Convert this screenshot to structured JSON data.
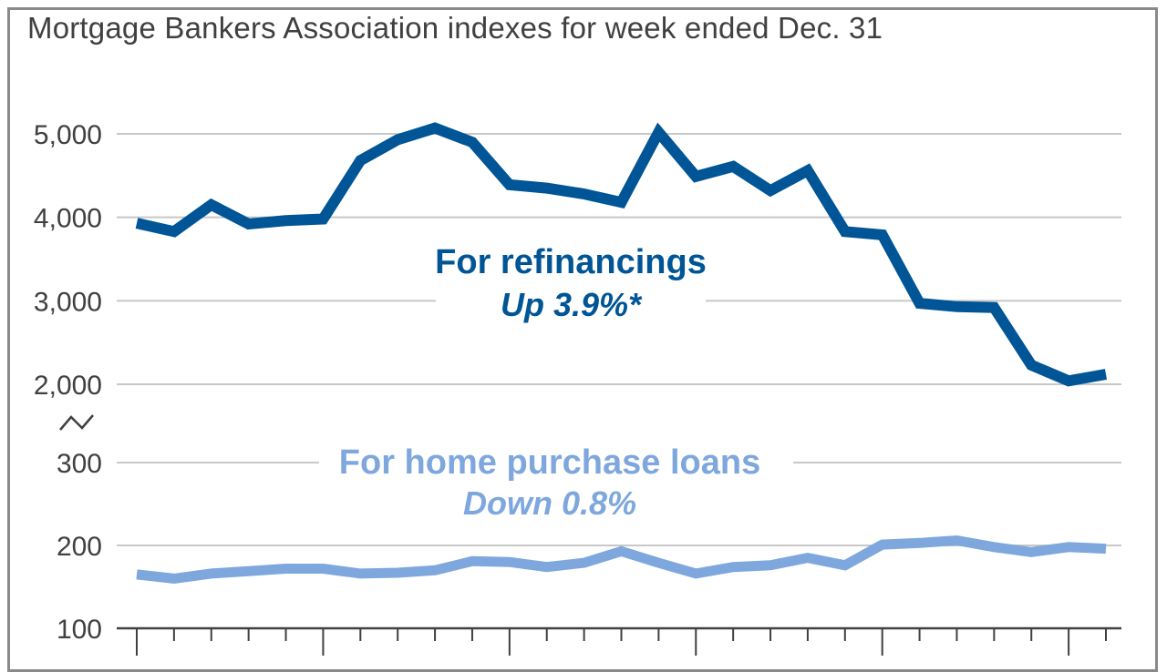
{
  "chart_data": {
    "type": "line",
    "title": "Mortgage Bankers Association indexes for week ended Dec. 31",
    "xlabel": "",
    "ylabel": "",
    "broken_axis": true,
    "grid": true,
    "upper_panel": {
      "ylim": [
        2000,
        5000
      ],
      "yticks": [
        2000,
        3000,
        4000,
        5000
      ],
      "ytick_labels": [
        "2,000",
        "3,000",
        "4,000",
        "5,000"
      ]
    },
    "lower_panel": {
      "ylim": [
        100,
        300
      ],
      "yticks": [
        100,
        200,
        300
      ],
      "ytick_labels": [
        "100",
        "200",
        "300"
      ]
    },
    "series": [
      {
        "name": "For refinancings",
        "note": "Up 3.9%*",
        "panel": "upper",
        "color": "#005596",
        "values": [
          3930,
          3830,
          4150,
          3920,
          3960,
          3980,
          4680,
          4930,
          5070,
          4900,
          4390,
          4350,
          4280,
          4180,
          5020,
          4490,
          4610,
          4320,
          4560,
          3830,
          3790,
          2970,
          2930,
          2920,
          2230,
          2040,
          2120
        ]
      },
      {
        "name": "For home purchase loans",
        "note": "Down 0.8%",
        "panel": "lower",
        "color": "#7ea7dd",
        "values": [
          165,
          160,
          166,
          169,
          172,
          172,
          166,
          167,
          170,
          181,
          180,
          174,
          179,
          193,
          179,
          166,
          174,
          176,
          185,
          176,
          201,
          203,
          206,
          198,
          192,
          198,
          196
        ]
      }
    ]
  }
}
